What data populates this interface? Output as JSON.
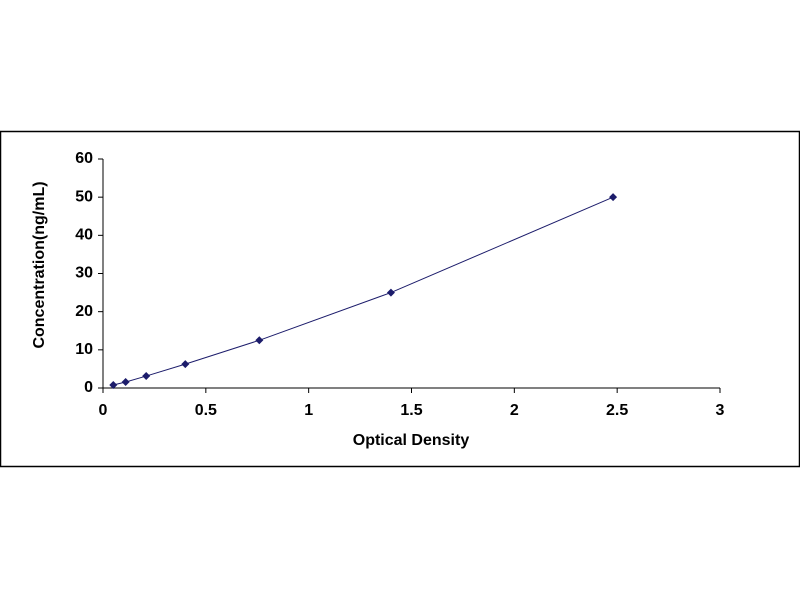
{
  "chart_data": {
    "type": "scatter",
    "x_label": "Optical Density",
    "y_label": "Concentration(ng/mL)",
    "x": [
      0.05,
      0.11,
      0.21,
      0.4,
      0.76,
      1.4,
      2.48
    ],
    "values": [
      0.78,
      1.56,
      3.13,
      6.25,
      12.5,
      25,
      50
    ],
    "color": "#1c1c6b",
    "trendline": true,
    "xlim": [
      0,
      3
    ],
    "xticks": [
      0,
      0.5,
      1,
      1.5,
      2,
      2.5,
      3
    ],
    "ylim": [
      0,
      60
    ],
    "yticks": [
      0,
      10,
      20,
      30,
      40,
      50,
      60
    ],
    "grid": false
  }
}
